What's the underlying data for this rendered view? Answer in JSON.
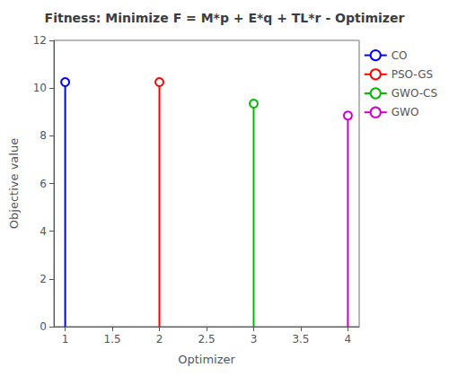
{
  "chart_data": {
    "type": "stem",
    "title": "Fitness: Minimize F = M*p + E*q + TL*r - Optimizer",
    "xlabel": "Optimizer",
    "ylabel": "Objective value",
    "xlim": [
      0.88,
      4.12
    ],
    "xticks": [
      1,
      1.5,
      2,
      2.5,
      3,
      3.5,
      4
    ],
    "ylim": [
      0,
      12
    ],
    "yticks": [
      0,
      2,
      4,
      6,
      8,
      10,
      12
    ],
    "marker": "circle",
    "grid": false,
    "legend": "upper right",
    "series": [
      {
        "name": "CO",
        "color": "#0000FF",
        "x": [
          1
        ],
        "values": [
          10.25
        ]
      },
      {
        "name": "PSO-GS",
        "color": "#FF0000",
        "x": [
          2
        ],
        "values": [
          10.25
        ]
      },
      {
        "name": "GWO-CS",
        "color": "#00BB00",
        "x": [
          3
        ],
        "values": [
          9.35
        ]
      },
      {
        "name": "GWO",
        "color": "#CC00CC",
        "x": [
          4
        ],
        "values": [
          8.85
        ]
      }
    ]
  }
}
